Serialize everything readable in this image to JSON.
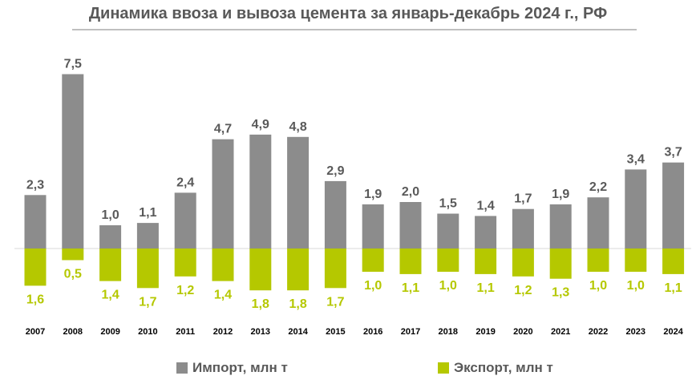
{
  "chart_data": {
    "type": "bar",
    "title": "Динамика ввоза и вывоза цемента за январь-декабрь 2024 г., РФ",
    "categories": [
      "2007",
      "2008",
      "2009",
      "2010",
      "2011",
      "2012",
      "2013",
      "2014",
      "2015",
      "2016",
      "2017",
      "2018",
      "2019",
      "2020",
      "2021",
      "2022",
      "2023",
      "2024"
    ],
    "series": [
      {
        "name": "Импорт, млн т",
        "color": "#8c8c8c",
        "direction": "up",
        "values": [
          2.3,
          7.5,
          1.0,
          1.1,
          2.4,
          4.7,
          4.9,
          4.8,
          2.9,
          1.9,
          2.0,
          1.5,
          1.4,
          1.7,
          1.9,
          2.2,
          3.4,
          3.7
        ],
        "labels": [
          "2,3",
          "7,5",
          "1,0",
          "1,1",
          "2,4",
          "4,7",
          "4,9",
          "4,8",
          "2,9",
          "1,9",
          "2,0",
          "1,5",
          "1,4",
          "1,7",
          "1,9",
          "2,2",
          "3,4",
          "3,7"
        ]
      },
      {
        "name": "Экспорт, млн т",
        "color": "#b5c800",
        "direction": "down",
        "values": [
          1.6,
          0.5,
          1.4,
          1.7,
          1.2,
          1.4,
          1.8,
          1.8,
          1.7,
          1.0,
          1.1,
          1.0,
          1.1,
          1.2,
          1.3,
          1.0,
          1.0,
          1.1
        ],
        "labels": [
          "1,6",
          "0,5",
          "1,4",
          "1,7",
          "1,2",
          "1,4",
          "1,8",
          "1,8",
          "1,7",
          "1,0",
          "1,1",
          "1,0",
          "1,1",
          "1,2",
          "1,3",
          "1,0",
          "1,0",
          "1,1"
        ]
      }
    ],
    "legend": [
      "Импорт, млн т",
      "Экспорт, млн т"
    ]
  },
  "colors": {
    "text": "#595959",
    "baseline": "#d9d9d9"
  }
}
